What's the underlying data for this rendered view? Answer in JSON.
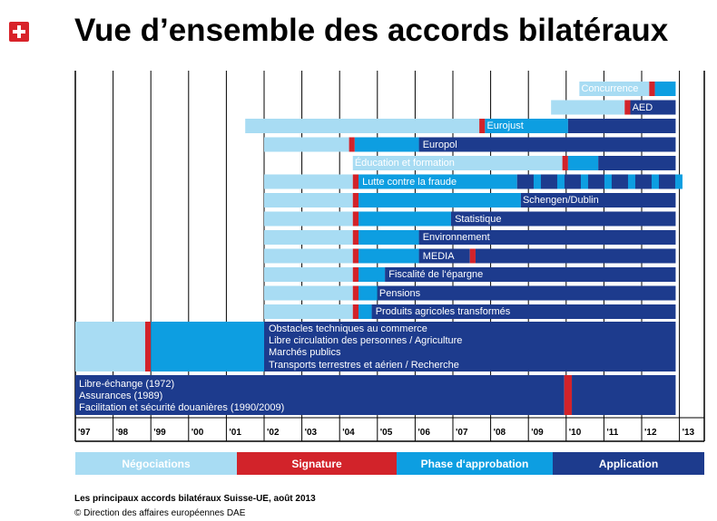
{
  "title": "Vue d’ensemble des accords bilatéraux",
  "colors": {
    "light": "#a8dcf3",
    "mid": "#0d9ee1",
    "dark": "#1d3b8d",
    "red": "#d2232a"
  },
  "years": [
    "'97",
    "'98",
    "'99",
    "'00",
    "'01",
    "'02",
    "'03",
    "'04",
    "'05",
    "'06",
    "'07",
    "'08",
    "'09",
    "'10",
    "'11",
    "'12",
    "'13"
  ],
  "agreements": [
    {
      "label": "Concurrence",
      "segments": [
        [
          "light",
          2010.35,
          2012.2
        ],
        [
          "red",
          2012.2,
          2012.35
        ],
        [
          "mid",
          2012.35,
          2012.9
        ]
      ]
    },
    {
      "label": "AED",
      "segments": [
        [
          "light",
          2009.6,
          2011.55
        ],
        [
          "red",
          2011.55,
          2011.7
        ],
        [
          "dark",
          2011.7,
          2012.9
        ]
      ]
    },
    {
      "label": "Eurojust",
      "segments": [
        [
          "light",
          2001.5,
          2007.7
        ],
        [
          "red",
          2007.7,
          2007.85
        ],
        [
          "mid",
          2007.85,
          2010.05
        ],
        [
          "dark",
          2010.05,
          2012.9
        ]
      ]
    },
    {
      "label": "Europol",
      "segments": [
        [
          "light",
          2002,
          2004.25
        ],
        [
          "red",
          2004.25,
          2004.4
        ],
        [
          "mid",
          2004.4,
          2006.1
        ],
        [
          "dark",
          2006.1,
          2012.9
        ]
      ]
    },
    {
      "label": "Éducation et formation",
      "segments": [
        [
          "light",
          2004.35,
          2009.9
        ],
        [
          "red",
          2009.9,
          2010.05
        ],
        [
          "mid",
          2010.05,
          2010.85
        ],
        [
          "dark",
          2010.85,
          2012.9
        ]
      ]
    },
    {
      "label": "Lutte contre la fraude",
      "segments": [
        [
          "light",
          2002,
          2004.35
        ],
        [
          "red",
          2004.35,
          2004.5
        ],
        [
          "mid",
          2004.5,
          2008.7
        ],
        [
          "dark",
          2008.7,
          2012.9
        ]
      ]
    },
    {
      "label": "Schengen/Dublin",
      "segments": [
        [
          "light",
          2002,
          2004.35
        ],
        [
          "red",
          2004.35,
          2004.5
        ],
        [
          "mid",
          2004.5,
          2008.8
        ],
        [
          "dark",
          2008.8,
          2012.9
        ]
      ]
    },
    {
      "label": "Statistique",
      "segments": [
        [
          "light",
          2002,
          2004.35
        ],
        [
          "red",
          2004.35,
          2004.5
        ],
        [
          "mid",
          2004.5,
          2006.95
        ],
        [
          "dark",
          2006.95,
          2012.9
        ]
      ]
    },
    {
      "label": "Environnement",
      "segments": [
        [
          "light",
          2002,
          2004.35
        ],
        [
          "red",
          2004.35,
          2004.5
        ],
        [
          "mid",
          2004.5,
          2006.1
        ],
        [
          "dark",
          2006.1,
          2012.9
        ]
      ]
    },
    {
      "label": "MEDIA",
      "segments": [
        [
          "light",
          2002,
          2004.35
        ],
        [
          "red",
          2004.35,
          2004.5
        ],
        [
          "mid",
          2004.5,
          2006.1
        ],
        [
          "dark",
          2006.1,
          2007.45
        ],
        [
          "red",
          2007.45,
          2007.6
        ],
        [
          "dark",
          2007.6,
          2012.9
        ]
      ]
    },
    {
      "label": "Fiscalité de l‘épargne",
      "segments": [
        [
          "light",
          2002,
          2004.35
        ],
        [
          "red",
          2004.35,
          2004.5
        ],
        [
          "mid",
          2004.5,
          2005.2
        ],
        [
          "dark",
          2005.2,
          2012.9
        ]
      ]
    },
    {
      "label": "Pensions",
      "segments": [
        [
          "light",
          2002,
          2004.35
        ],
        [
          "red",
          2004.35,
          2004.5
        ],
        [
          "mid",
          2004.5,
          2005.0
        ],
        [
          "dark",
          2005.0,
          2012.9
        ]
      ]
    },
    {
      "label": "Produits agricoles transformés",
      "segments": [
        [
          "light",
          2002,
          2004.35
        ],
        [
          "red",
          2004.35,
          2004.5
        ],
        [
          "mid",
          2004.5,
          2004.85
        ],
        [
          "dark",
          2004.85,
          2012.9
        ]
      ]
    }
  ],
  "bilaterals_i": {
    "lines": [
      "Obstacles techniques au commerce",
      "Libre circulation des personnes / Agriculture",
      "Marchés publics",
      "Transports terrestres et aérien / Recherche"
    ],
    "segments": [
      [
        "light",
        1997,
        1998.85
      ],
      [
        "red",
        1998.85,
        1999.0
      ],
      [
        "mid",
        1999.0,
        2002.0
      ],
      [
        "dark",
        2002.0,
        2012.9
      ]
    ]
  },
  "early_agreements": {
    "lines": [
      "Libre-échange  (1972)",
      "Assurances (1989)",
      "Facilitation et sécurité douanières (1990/2009)"
    ],
    "segments": [
      [
        "dark",
        1997,
        2009.95
      ],
      [
        "red",
        2009.95,
        2010.15
      ],
      [
        "dark",
        2010.15,
        2012.9
      ]
    ]
  },
  "legend": [
    {
      "label": "Négociations",
      "color": "light"
    },
    {
      "label": "Signature",
      "color": "red"
    },
    {
      "label": "Phase d‘approbation",
      "color": "mid"
    },
    {
      "label": "Application",
      "color": "dark"
    }
  ],
  "footer": {
    "title": "Les principaux accords bilatéraux Suisse-UE, août 2013",
    "credit": "©  Direction des affaires européennes DAE"
  }
}
